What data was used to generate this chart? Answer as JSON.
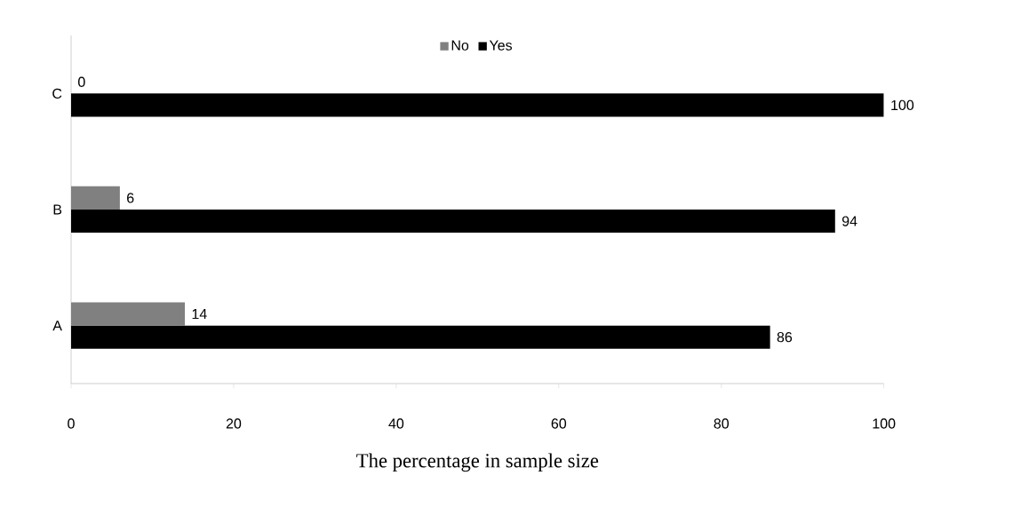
{
  "chart_data": {
    "type": "bar",
    "orientation": "horizontal",
    "xlabel": "The percentage in sample size",
    "categories": [
      "C",
      "B",
      "A"
    ],
    "series": [
      {
        "name": "No",
        "color": "#808080",
        "values": [
          0,
          6,
          14
        ]
      },
      {
        "name": "Yes",
        "color": "#000000",
        "values": [
          100,
          94,
          86
        ]
      }
    ],
    "xlim": [
      0,
      100
    ],
    "xticks": [
      0,
      20,
      40,
      60,
      80,
      100
    ],
    "data_labels": true,
    "legend": "top",
    "grid": false
  }
}
